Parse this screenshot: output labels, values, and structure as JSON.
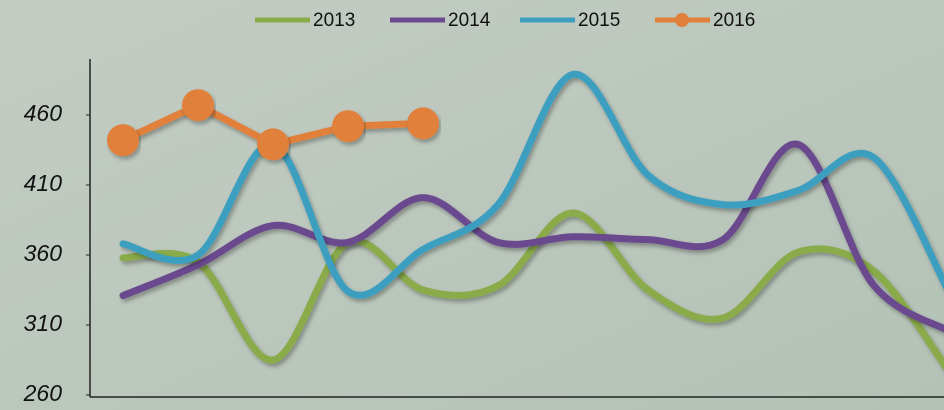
{
  "chart_data": {
    "type": "line",
    "categories": [
      null,
      null,
      null,
      null,
      null,
      null,
      null,
      null,
      null,
      null,
      null,
      null
    ],
    "series": [
      {
        "name": "2013",
        "color": "#8aab4a",
        "smooth": true,
        "values": [
          358,
          355,
          285,
          369,
          335,
          338,
          390,
          335,
          315,
          362,
          349,
          278
        ]
      },
      {
        "name": "2014",
        "color": "#6b4a8f",
        "smooth": true,
        "values": [
          331,
          353,
          381,
          369,
          401,
          369,
          373,
          371,
          371,
          439,
          339,
          306
        ]
      },
      {
        "name": "2015",
        "color": "#3d9fc0",
        "smooth": true,
        "values": [
          368,
          360,
          439,
          334,
          364,
          396,
          489,
          417,
          396,
          406,
          430,
          335
        ]
      },
      {
        "name": "2016",
        "color": "#e0803a",
        "smooth": false,
        "markers": true,
        "values": [
          442,
          467,
          439,
          452,
          454,
          null,
          null,
          null,
          null,
          null,
          null,
          null
        ]
      }
    ],
    "ylim": [
      260,
      500
    ],
    "yticks": [
      260,
      310,
      360,
      410,
      460
    ],
    "legend": "top"
  }
}
